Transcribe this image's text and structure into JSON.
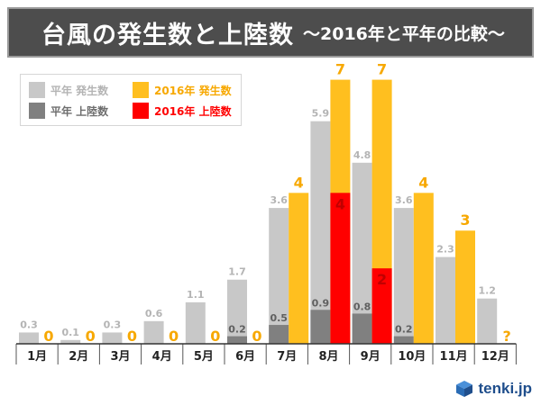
{
  "header": {
    "title": "台風の発生数と上陸数",
    "subtitle": "～2016年と平年の比較～"
  },
  "legend": {
    "items": [
      {
        "label": "平年 発生数",
        "color": "#c8c8c8",
        "text_color": "#b4b4b4"
      },
      {
        "label": "2016年 発生数",
        "color": "#ffbf1f",
        "text_color": "#f7a800"
      },
      {
        "label": "平年 上陸数",
        "color": "#808080",
        "text_color": "#6e6e6e"
      },
      {
        "label": "2016年 上陸数",
        "color": "#ff0000",
        "text_color": "#ff0000"
      }
    ]
  },
  "chart_data": {
    "type": "bar",
    "title": "台風の発生数と上陸数 ～2016年と平年の比較～",
    "categories": [
      "1月",
      "2月",
      "3月",
      "4月",
      "5月",
      "6月",
      "7月",
      "8月",
      "9月",
      "10月",
      "11月",
      "12月"
    ],
    "ylim": [
      0,
      7.3
    ],
    "series": [
      {
        "name": "平年 発生数",
        "color": "#c8c8c8",
        "label_color": "#b4b4b4",
        "values": [
          0.3,
          0.1,
          0.3,
          0.6,
          1.1,
          1.7,
          3.6,
          5.9,
          4.8,
          3.6,
          2.3,
          1.2
        ],
        "labels": [
          "0.3",
          "0.1",
          "0.3",
          "0.6",
          "1.1",
          "1.7",
          "3.6",
          "5.9",
          "4.8",
          "3.6",
          "2.3",
          "1.2"
        ]
      },
      {
        "name": "平年 上陸数",
        "color": "#808080",
        "label_color": "#606060",
        "values": [
          0,
          0,
          0,
          0,
          0,
          0.2,
          0.5,
          0.9,
          0.8,
          0.2,
          0,
          0
        ],
        "labels": [
          "",
          "",
          "",
          "",
          "",
          "0.2",
          "0.5",
          "0.9",
          "0.8",
          "0.2",
          "",
          ""
        ]
      },
      {
        "name": "2016年 発生数",
        "color": "#ffbf1f",
        "label_color": "#f7a800",
        "values": [
          0,
          0,
          0,
          0,
          0,
          0,
          4,
          7,
          7,
          4,
          3,
          null
        ],
        "labels": [
          "0",
          "0",
          "0",
          "0",
          "0",
          "0",
          "4",
          "7",
          "7",
          "4",
          "3",
          "?"
        ]
      },
      {
        "name": "2016年 上陸数",
        "color": "#ff0000",
        "label_color": "#ff0000",
        "values": [
          0,
          0,
          0,
          0,
          0,
          0,
          0,
          4,
          2,
          0,
          0,
          null
        ],
        "labels": [
          "",
          "",
          "",
          "",
          "",
          "",
          "",
          "4",
          "2",
          "",
          "",
          ""
        ]
      }
    ]
  },
  "footer": {
    "logo_text": "tenki.jp"
  }
}
